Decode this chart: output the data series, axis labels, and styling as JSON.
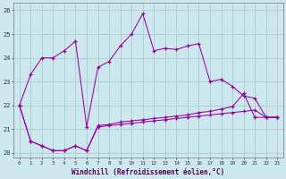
{
  "xlabel": "Windchill (Refroidissement éolien,°C)",
  "background_color": "#cce8ee",
  "grid_color": "#aacccc",
  "line_color": "#990099",
  "ylim": [
    19.8,
    26.3
  ],
  "xlim": [
    -0.5,
    23.5
  ],
  "line1": [
    22.0,
    23.3,
    24.0,
    24.0,
    24.3,
    24.7,
    21.1,
    23.6,
    23.85,
    24.5,
    25.0,
    25.85,
    24.3,
    24.4,
    24.35,
    24.5,
    24.6,
    23.0,
    23.1,
    22.8,
    22.4,
    22.3,
    21.5,
    21.5
  ],
  "line2": [
    22.0,
    20.5,
    20.3,
    20.1,
    20.1,
    20.3,
    20.1,
    21.15,
    21.2,
    21.3,
    21.35,
    21.4,
    21.45,
    21.5,
    21.55,
    21.6,
    21.7,
    21.75,
    21.85,
    21.95,
    22.5,
    21.5,
    21.5,
    21.5
  ],
  "line3": [
    22.0,
    20.5,
    20.3,
    20.1,
    20.1,
    20.3,
    20.1,
    21.1,
    21.15,
    21.2,
    21.25,
    21.3,
    21.35,
    21.4,
    21.45,
    21.5,
    21.55,
    21.6,
    21.65,
    21.7,
    21.75,
    21.8,
    21.5,
    21.5
  ]
}
